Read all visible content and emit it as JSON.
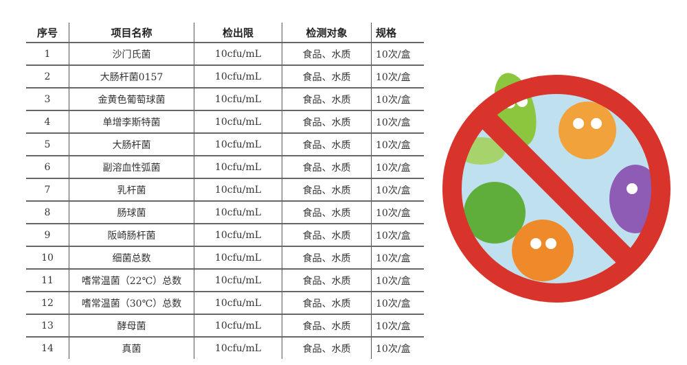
{
  "table": {
    "headers": [
      "序号",
      "项目名称",
      "检出限",
      "检测对象",
      "规格"
    ],
    "rows": [
      [
        "1",
        "沙门氏菌",
        "10cfu/mL",
        "食品、水质",
        "10次/盒"
      ],
      [
        "2",
        "大肠杆菌0157",
        "10cfu/mL",
        "食品、水质",
        "10次/盒"
      ],
      [
        "3",
        "金黄色葡萄球菌",
        "10cfu/mL",
        "食品、水质",
        "10次/盒"
      ],
      [
        "4",
        "单增李斯特菌",
        "10cfu/mL",
        "食品、水质",
        "10次/盒"
      ],
      [
        "5",
        "大肠杆菌",
        "10cfu/mL",
        "食品、水质",
        "10次/盒"
      ],
      [
        "6",
        "副溶血性弧菌",
        "10cfu/mL",
        "食品、水质",
        "10次/盒"
      ],
      [
        "7",
        "乳杆菌",
        "10cfu/mL",
        "食品、水质",
        "10次/盒"
      ],
      [
        "8",
        "肠球菌",
        "10cfu/mL",
        "食品、水质",
        "10次/盒"
      ],
      [
        "9",
        "阪崎肠杆菌",
        "10cfu/mL",
        "食品、水质",
        "10次/盒"
      ],
      [
        "10",
        "细菌总数",
        "10cfu/mL",
        "食品、水质",
        "10次/盒"
      ],
      [
        "11",
        "嗜常温菌（22℃）总数",
        "10cfu/mL",
        "食品、水质",
        "10次/盒"
      ],
      [
        "12",
        "嗜常温菌（30℃）总数",
        "10cfu/mL",
        "食品、水质",
        "10次/盒"
      ],
      [
        "13",
        "酵母菌",
        "10cfu/mL",
        "食品、水质",
        "10次/盒"
      ],
      [
        "14",
        "真菌",
        "10cfu/mL",
        "食品、水质",
        "10次/盒"
      ]
    ]
  },
  "illustration": {
    "icon": "no-bacteria-sign",
    "colors": {
      "ring": "#d9342b",
      "inside": "#bfe0ee",
      "green": "#8cc63f",
      "orange": "#f2a23a",
      "purple": "#8e5bb5"
    }
  }
}
